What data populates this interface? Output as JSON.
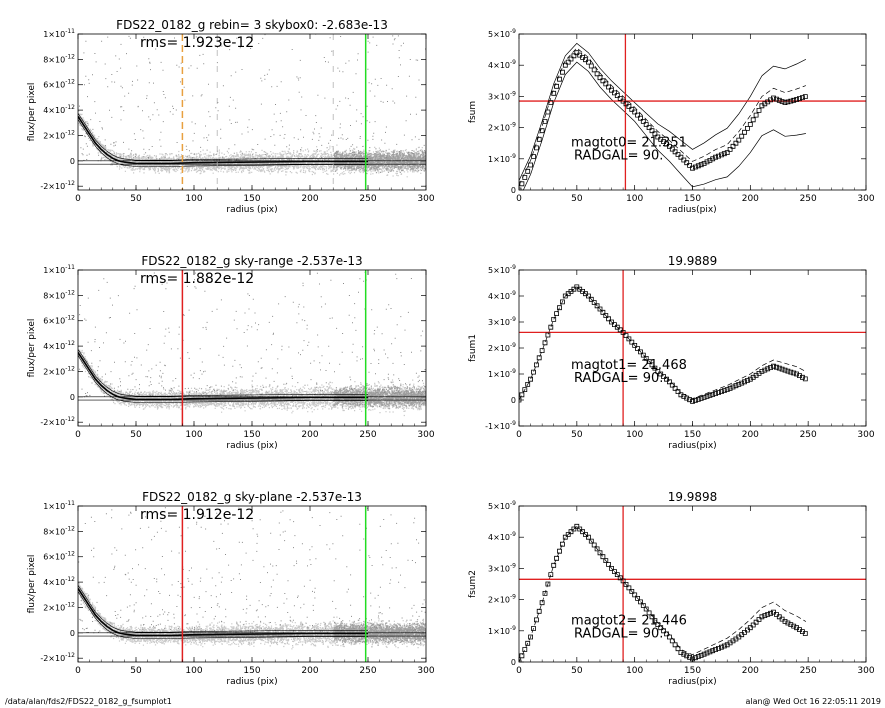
{
  "footer": {
    "path": "/data/alan/fds2/FDS22_0182_g_fsumplot1",
    "stamp": "alan@  Wed Oct 16 22:05:11 2019"
  },
  "colors": {
    "scatter_light": "#c8c8c8",
    "scatter_dark": "#a0a0a0",
    "profile": "#000000",
    "orange_marker": "#e8a040",
    "red_marker": "#e02020",
    "green_marker": "#22dd22",
    "crosshair": "#e02020"
  },
  "chart_data": [
    {
      "type": "scatter",
      "title": "FDS22_0182_g rebin= 3    skybox0: -2.683e-13",
      "annotation": "rms= 1.923e-12",
      "xlabel": "radius (pix)",
      "ylabel": "flux/per pixel",
      "xlim": [
        0,
        300
      ],
      "ylim": [
        -2.3e-12,
        1e-11
      ],
      "xticks": [
        "0",
        "50",
        "100",
        "150",
        "200",
        "250",
        "300"
      ],
      "yticks": [
        {
          "v": 1e-11,
          "m": "1×10",
          "e": "-11"
        },
        {
          "v": 8e-12,
          "m": "8×10",
          "e": "-12"
        },
        {
          "v": 6e-12,
          "m": "6×10",
          "e": "-12"
        },
        {
          "v": 4e-12,
          "m": "4×10",
          "e": "-12"
        },
        {
          "v": 2e-12,
          "m": "2×10",
          "e": "-12"
        },
        {
          "v": 0,
          "m": "0",
          "e": ""
        },
        {
          "v": -2e-12,
          "m": "-2×10",
          "e": "-12"
        }
      ],
      "profile": {
        "x": [
          0,
          5,
          10,
          15,
          20,
          25,
          30,
          35,
          40,
          50,
          60,
          80,
          100,
          150,
          200,
          250
        ],
        "y": [
          3.5e-12,
          2.8e-12,
          2.1e-12,
          1.4e-12,
          9e-13,
          5e-13,
          2e-13,
          0,
          -1e-13,
          -2e-13,
          -2e-13,
          -2e-13,
          -1.5e-13,
          -1e-13,
          -5e-14,
          -5e-14
        ]
      },
      "sky_levels": [
        -2.683e-13,
        0
      ],
      "markers": [
        {
          "x": 90,
          "style": "dashed",
          "color": "orange"
        },
        {
          "x": 120,
          "style": "dashed",
          "color": "gray"
        },
        {
          "x": 220,
          "style": "dashed",
          "color": "gray"
        },
        {
          "x": 248,
          "style": "solid",
          "color": "green"
        }
      ]
    },
    {
      "type": "line",
      "title": "",
      "ylabel": "fsum",
      "xlabel": "radius(pix)",
      "xlim": [
        0,
        300
      ],
      "ylim": [
        0,
        5e-09
      ],
      "xticks": [
        "0",
        "50",
        "100",
        "150",
        "200",
        "250",
        "300"
      ],
      "yticks": [
        {
          "v": 5e-09,
          "m": "5×10",
          "e": "-9"
        },
        {
          "v": 4e-09,
          "m": "4×10",
          "e": "-9"
        },
        {
          "v": 3e-09,
          "m": "3×10",
          "e": "-9"
        },
        {
          "v": 2e-09,
          "m": "2×10",
          "e": "-9"
        },
        {
          "v": 1e-09,
          "m": "1×10",
          "e": "-9"
        },
        {
          "v": 0,
          "m": "0",
          "e": ""
        }
      ],
      "curve": {
        "x": [
          0,
          10,
          20,
          30,
          40,
          50,
          60,
          70,
          80,
          90,
          100,
          110,
          120,
          130,
          140,
          150,
          160,
          170,
          180,
          190,
          200,
          210,
          220,
          230,
          240,
          248
        ],
        "y": [
          0,
          8e-10,
          1.9e-09,
          3.1e-09,
          4e-09,
          4.4e-09,
          4.1e-09,
          3.6e-09,
          3.2e-09,
          2.85e-09,
          2.5e-09,
          2.1e-09,
          1.7e-09,
          1.4e-09,
          1.05e-09,
          7e-10,
          8.5e-10,
          1.05e-09,
          1.2e-09,
          1.6e-09,
          2.1e-09,
          2.7e-09,
          2.95e-09,
          2.8e-09,
          2.9e-09,
          3e-09
        ]
      },
      "envelope": [
        {
          "dy": 3e-10,
          "grow": 9e-10
        },
        {
          "dy": -3e-10,
          "grow": -9e-10
        },
        {
          "dy": 1.5e-10,
          "grow": 2e-10
        }
      ],
      "crosshair": {
        "x": 92,
        "y": 2.85e-09
      },
      "text1": "magtot0=  21.351",
      "text2": "RADGAL=     90.",
      "text_pos": {
        "x": 45,
        "y": 1.4e-09
      }
    },
    {
      "type": "scatter",
      "title": "FDS22_0182_g sky-range -2.537e-13",
      "annotation": "rms= 1.882e-12",
      "xlabel": "radius (pix)",
      "ylabel": "flux/per pixel",
      "xlim": [
        0,
        300
      ],
      "ylim": [
        -2.3e-12,
        1e-11
      ],
      "xticks": [
        "0",
        "50",
        "100",
        "150",
        "200",
        "250",
        "300"
      ],
      "yticks": [
        {
          "v": 1e-11,
          "m": "1×10",
          "e": "-11"
        },
        {
          "v": 8e-12,
          "m": "8×10",
          "e": "-12"
        },
        {
          "v": 6e-12,
          "m": "6×10",
          "e": "-12"
        },
        {
          "v": 4e-12,
          "m": "4×10",
          "e": "-12"
        },
        {
          "v": 2e-12,
          "m": "2×10",
          "e": "-12"
        },
        {
          "v": 0,
          "m": "0",
          "e": ""
        },
        {
          "v": -2e-12,
          "m": "-2×10",
          "e": "-12"
        }
      ],
      "profile": {
        "x": [
          0,
          5,
          10,
          15,
          20,
          25,
          30,
          35,
          40,
          50,
          60,
          80,
          100,
          150,
          200,
          250
        ],
        "y": [
          3.5e-12,
          2.8e-12,
          2.1e-12,
          1.4e-12,
          9e-13,
          5e-13,
          2e-13,
          0,
          -1e-13,
          -2e-13,
          -2e-13,
          -2e-13,
          -1.5e-13,
          -1e-13,
          -5e-14,
          -5e-14
        ]
      },
      "sky_levels": [
        -2.537e-13,
        0
      ],
      "markers": [
        {
          "x": 90,
          "style": "solid",
          "color": "red"
        },
        {
          "x": 248,
          "style": "solid",
          "color": "green"
        }
      ]
    },
    {
      "type": "line",
      "title": "19.9889",
      "ylabel": "fsum1",
      "xlabel": "radius(pix)",
      "xlim": [
        0,
        300
      ],
      "ylim": [
        -1e-09,
        5e-09
      ],
      "xticks": [
        "0",
        "50",
        "100",
        "150",
        "200",
        "250",
        "300"
      ],
      "yticks": [
        {
          "v": 5e-09,
          "m": "5×10",
          "e": "-9"
        },
        {
          "v": 4e-09,
          "m": "4×10",
          "e": "-9"
        },
        {
          "v": 3e-09,
          "m": "3×10",
          "e": "-9"
        },
        {
          "v": 2e-09,
          "m": "2×10",
          "e": "-9"
        },
        {
          "v": 1e-09,
          "m": "1×10",
          "e": "-9"
        },
        {
          "v": 0,
          "m": "0",
          "e": ""
        },
        {
          "v": -1e-09,
          "m": "-1×10",
          "e": "-9"
        }
      ],
      "curve": {
        "x": [
          0,
          10,
          20,
          30,
          40,
          50,
          60,
          70,
          80,
          90,
          100,
          110,
          120,
          130,
          140,
          150,
          160,
          170,
          180,
          190,
          200,
          210,
          220,
          230,
          240,
          248
        ],
        "y": [
          0,
          8e-10,
          1.9e-09,
          3.1e-09,
          4e-09,
          4.35e-09,
          4e-09,
          3.5e-09,
          3e-09,
          2.6e-09,
          2.1e-09,
          1.6e-09,
          1.1e-09,
          7e-10,
          2e-10,
          -5e-11,
          1e-10,
          2.5e-10,
          4e-10,
          6e-10,
          8e-10,
          1.1e-09,
          1.3e-09,
          1.15e-09,
          1e-09,
          8e-10
        ]
      },
      "envelope": [
        {
          "dy": 0,
          "grow": 3e-10
        }
      ],
      "crosshair": {
        "x": 90,
        "y": 2.6e-09
      },
      "text1": "magtot1=  21.468",
      "text2": "RADGAL=     90.",
      "text_pos": {
        "x": 45,
        "y": 1.2e-09
      }
    },
    {
      "type": "scatter",
      "title": "FDS22_0182_g sky-plane -2.537e-13",
      "annotation": "rms= 1.912e-12",
      "xlabel": "radius (pix)",
      "ylabel": "flux/per pixel",
      "xlim": [
        0,
        300
      ],
      "ylim": [
        -2.3e-12,
        1e-11
      ],
      "xticks": [
        "0",
        "50",
        "100",
        "150",
        "200",
        "250",
        "300"
      ],
      "yticks": [
        {
          "v": 1e-11,
          "m": "1×10",
          "e": "-11"
        },
        {
          "v": 8e-12,
          "m": "8×10",
          "e": "-12"
        },
        {
          "v": 6e-12,
          "m": "6×10",
          "e": "-12"
        },
        {
          "v": 4e-12,
          "m": "4×10",
          "e": "-12"
        },
        {
          "v": 2e-12,
          "m": "2×10",
          "e": "-12"
        },
        {
          "v": 0,
          "m": "0",
          "e": ""
        },
        {
          "v": -2e-12,
          "m": "-2×10",
          "e": "-12"
        }
      ],
      "profile": {
        "x": [
          0,
          5,
          10,
          15,
          20,
          25,
          30,
          35,
          40,
          50,
          60,
          80,
          100,
          150,
          200,
          250
        ],
        "y": [
          3.5e-12,
          2.8e-12,
          2.1e-12,
          1.4e-12,
          9e-13,
          5e-13,
          2e-13,
          0,
          -1e-13,
          -2e-13,
          -2e-13,
          -2e-13,
          -1.5e-13,
          -1e-13,
          -5e-14,
          -5e-14
        ]
      },
      "sky_levels": [
        -2.537e-13,
        0
      ],
      "markers": [
        {
          "x": 90,
          "style": "solid",
          "color": "red"
        },
        {
          "x": 248,
          "style": "solid",
          "color": "green"
        }
      ]
    },
    {
      "type": "line",
      "title": "19.9898",
      "ylabel": "fsum2",
      "xlabel": "radius(pix)",
      "xlim": [
        0,
        300
      ],
      "ylim": [
        0,
        5e-09
      ],
      "xticks": [
        "0",
        "50",
        "100",
        "150",
        "200",
        "250",
        "300"
      ],
      "yticks": [
        {
          "v": 5e-09,
          "m": "5×10",
          "e": "-9"
        },
        {
          "v": 4e-09,
          "m": "4×10",
          "e": "-9"
        },
        {
          "v": 3e-09,
          "m": "3×10",
          "e": "-9"
        },
        {
          "v": 2e-09,
          "m": "2×10",
          "e": "-9"
        },
        {
          "v": 1e-09,
          "m": "1×10",
          "e": "-9"
        },
        {
          "v": 0,
          "m": "0",
          "e": ""
        }
      ],
      "curve": {
        "x": [
          0,
          10,
          20,
          30,
          40,
          50,
          60,
          70,
          80,
          90,
          100,
          110,
          120,
          130,
          140,
          150,
          160,
          170,
          180,
          190,
          200,
          210,
          220,
          230,
          240,
          248
        ],
        "y": [
          0,
          8e-10,
          1.9e-09,
          3.1e-09,
          4e-09,
          4.35e-09,
          4e-09,
          3.5e-09,
          3e-09,
          2.6e-09,
          2.15e-09,
          1.7e-09,
          1.2e-09,
          8e-10,
          3e-10,
          1e-10,
          2.5e-10,
          4e-10,
          5.5e-10,
          8e-10,
          1.1e-09,
          1.45e-09,
          1.6e-09,
          1.3e-09,
          1.1e-09,
          9e-10
        ]
      },
      "envelope": [
        {
          "dy": 0,
          "grow": 4e-10
        }
      ],
      "crosshair": {
        "x": 90,
        "y": 2.65e-09
      },
      "text1": "magtot2=  21.446",
      "text2": "RADGAL=     90.",
      "text_pos": {
        "x": 45,
        "y": 1.2e-09
      }
    }
  ]
}
